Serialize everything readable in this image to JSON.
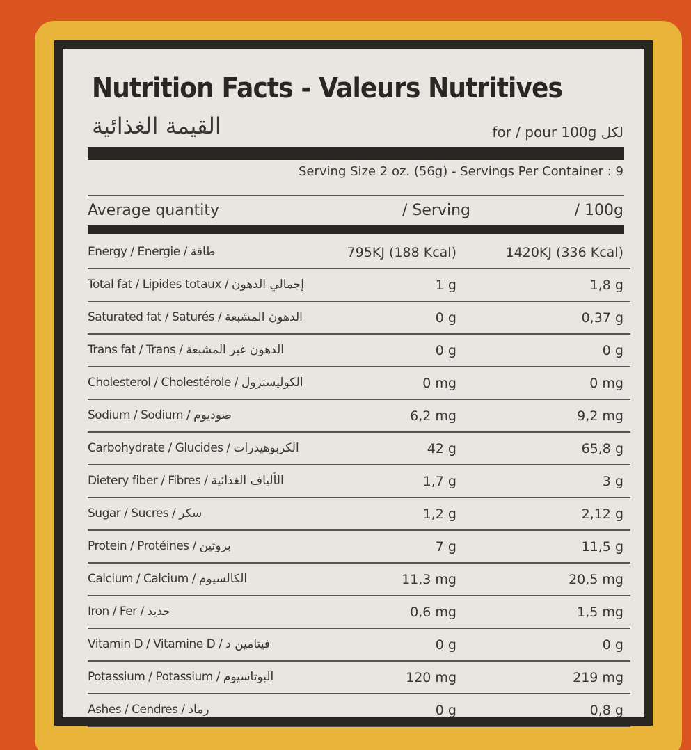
{
  "header": {
    "title": "Nutrition Facts - Valeurs Nutritives",
    "title_ar": "القيمة الغذائية",
    "per": "for / pour 100g لكل"
  },
  "serving": "Serving Size 2 oz. (56g) - Servings Per Container : 9",
  "columns": {
    "label": "Average quantity",
    "serving": "/ Serving",
    "per100": "/ 100g"
  },
  "table": {
    "rows": [
      [
        "Energy / Energie / طاقة",
        "795KJ (188 Kcal)",
        "1420KJ (336 Kcal)"
      ],
      [
        "Total fat / Lipides totaux / إجمالي الدهون",
        "1 g",
        "1,8 g"
      ],
      [
        "Saturated fat / Saturés / الدهون المشبعة",
        "0 g",
        "0,37 g"
      ],
      [
        "Trans fat / Trans / الدهون غير المشبعة",
        "0 g",
        "0 g"
      ],
      [
        "Cholesterol / Cholestérole / الكوليسترول",
        "0 mg",
        "0 mg"
      ],
      [
        "Sodium / Sodium / صوديوم",
        "6,2 mg",
        "9,2 mg"
      ],
      [
        "Carbohydrate / Glucides / الكربوهيدرات",
        "42 g",
        "65,8 g"
      ],
      [
        "Dietery fiber / Fibres / الألياف الغذائية",
        "1,7 g",
        "3 g"
      ],
      [
        "Sugar / Sucres / سكر",
        "1,2 g",
        "2,12 g"
      ],
      [
        "Protein / Protéines / بروتين",
        "7 g",
        "11,5 g"
      ],
      [
        "Calcium / Calcium / الكالسيوم",
        "11,3 mg",
        "20,5 mg"
      ],
      [
        "Iron / Fer / حديد",
        "0,6 mg",
        "1,5 mg"
      ],
      [
        "Vitamin D / Vitamine D / فيتامين د",
        "0 g",
        "0 g"
      ],
      [
        "Potassium / Potassium / البوتاسيوم",
        "120 mg",
        "219 mg"
      ],
      [
        "Ashes / Cendres / رماد",
        "0 g",
        "0,8 g"
      ]
    ]
  }
}
